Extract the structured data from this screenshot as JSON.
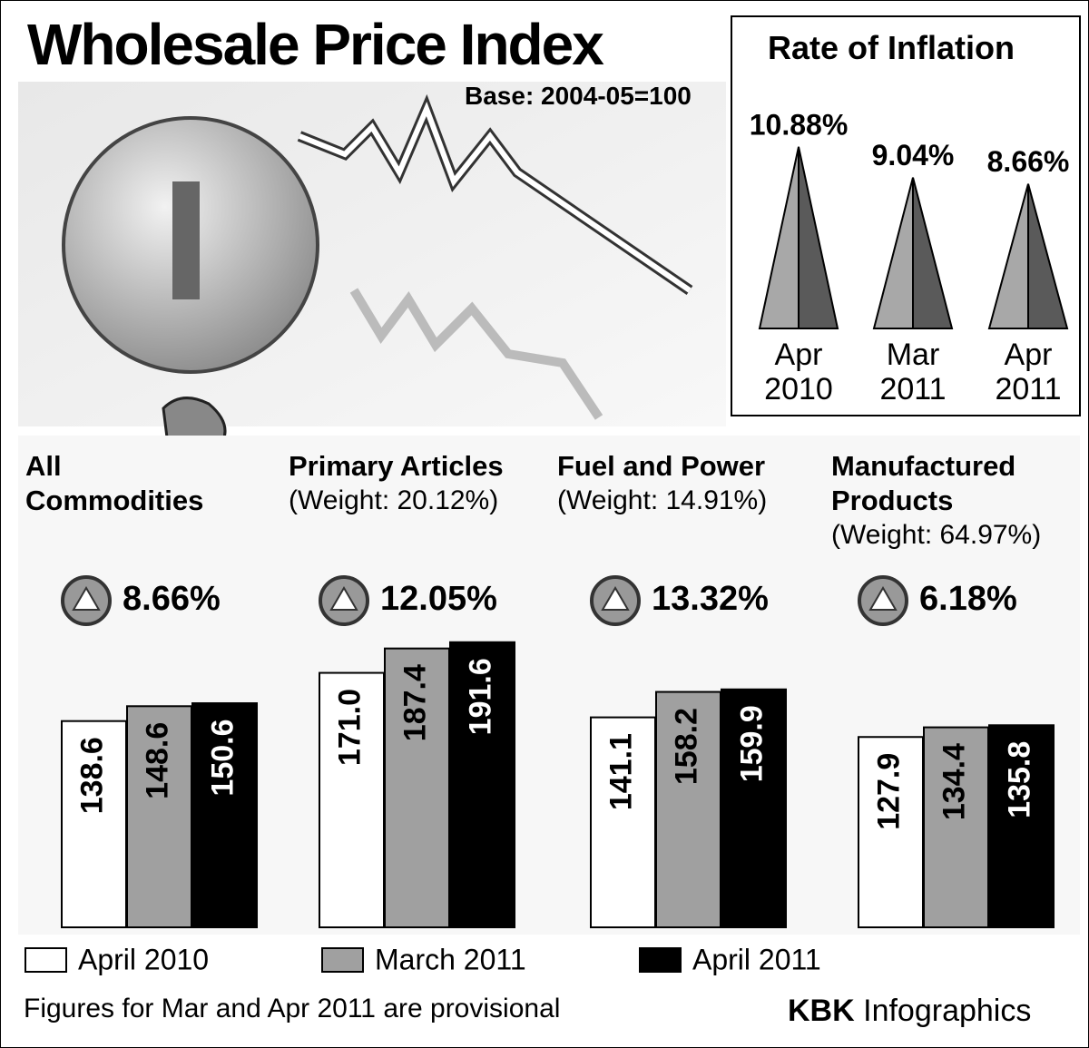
{
  "title": "Wholesale Price Index",
  "subtitle": "Base: 2004-05=100",
  "footnote": "Figures for Mar and Apr 2011 are provisional",
  "credit_brand": "KBK",
  "credit_text": "Infographics",
  "chart_data": [
    {
      "type": "triangle",
      "title": "Rate of Inflation",
      "categories": [
        "Apr 2010",
        "Mar 2011",
        "Apr 2011"
      ],
      "values": [
        10.88,
        9.04,
        8.66
      ],
      "value_labels": [
        "10.88%",
        "9.04%",
        "8.66%"
      ],
      "colors": [
        "#a8a8a8",
        "#5a5a5a"
      ]
    },
    {
      "type": "bar",
      "categories": [
        "All Commodities",
        "Primary Articles",
        "Fuel and Power",
        "Manufactured Products"
      ],
      "weights": [
        null,
        "(Weight: 20.12%)",
        "(Weight: 14.91%)",
        "(Weight: 64.97%)"
      ],
      "changes": [
        8.66,
        12.05,
        13.32,
        6.18
      ],
      "change_labels": [
        "8.66%",
        "12.05%",
        "13.32%",
        "6.18%"
      ],
      "series": [
        {
          "name": "April 2010",
          "color": "#ffffff",
          "values": [
            138.6,
            171.0,
            141.1,
            127.9
          ],
          "value_labels": [
            "138.6",
            "171.0",
            "141.1",
            "127.9"
          ]
        },
        {
          "name": "March 2011",
          "color": "#a0a0a0",
          "values": [
            148.6,
            187.4,
            158.2,
            134.4
          ],
          "value_labels": [
            "148.6",
            "187.4",
            "158.2",
            "134.4"
          ]
        },
        {
          "name": "April 2011",
          "color": "#000000",
          "values": [
            150.6,
            191.6,
            159.9,
            135.8
          ],
          "value_labels": [
            "150.6",
            "191.6",
            "159.9",
            "135.8"
          ]
        }
      ]
    }
  ]
}
